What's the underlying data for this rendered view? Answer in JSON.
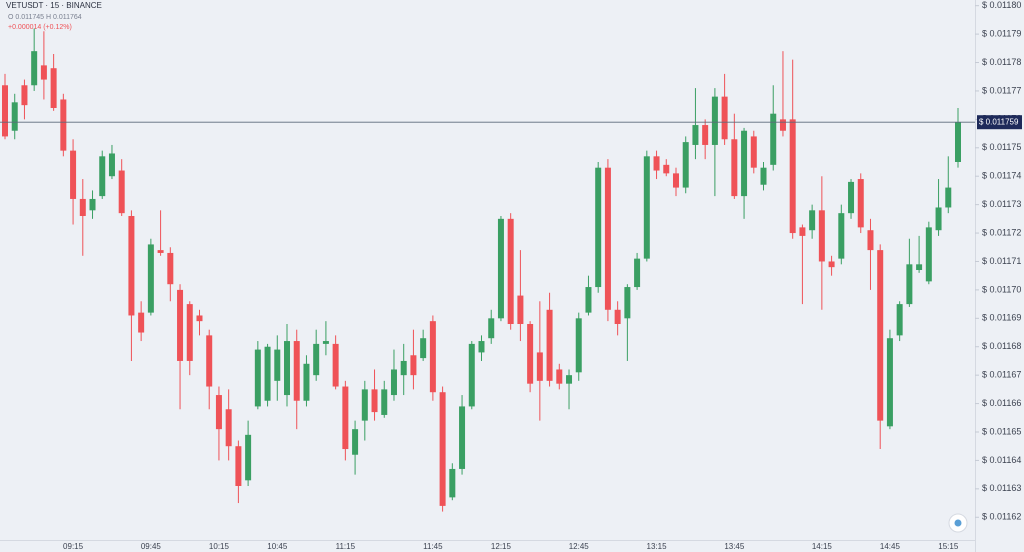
{
  "chart_data": {
    "type": "candlestick",
    "title": "VETUSDT · 15 · BINANCE",
    "subtitle": "O 0.011745 H 0.011764",
    "change": "+0.000014 (+0.12%)",
    "up_color": "#3a9f63",
    "down_color": "#ef5257",
    "price_line": {
      "value": 0.011759,
      "label": "$ 0.011759"
    },
    "ylim": [
      0.011612,
      0.011802
    ],
    "yticks": [
      {
        "value": 0.0118,
        "label": "$ 0.01180"
      },
      {
        "value": 0.01179,
        "label": "$ 0.01179"
      },
      {
        "value": 0.01178,
        "label": "$ 0.01178"
      },
      {
        "value": 0.01177,
        "label": "$ 0.01177"
      },
      {
        "value": 0.01176,
        "label": "$ 0.01176"
      },
      {
        "value": 0.01175,
        "label": "$ 0.01175"
      },
      {
        "value": 0.01174,
        "label": "$ 0.01174"
      },
      {
        "value": 0.01173,
        "label": "$ 0.01173"
      },
      {
        "value": 0.01172,
        "label": "$ 0.01172"
      },
      {
        "value": 0.01171,
        "label": "$ 0.01171"
      },
      {
        "value": 0.0117,
        "label": "$ 0.01170"
      },
      {
        "value": 0.01169,
        "label": "$ 0.01169"
      },
      {
        "value": 0.01168,
        "label": "$ 0.01168"
      },
      {
        "value": 0.01167,
        "label": "$ 0.01167"
      },
      {
        "value": 0.01166,
        "label": "$ 0.01166"
      },
      {
        "value": 0.01165,
        "label": "$ 0.01165"
      },
      {
        "value": 0.01164,
        "label": "$ 0.01164"
      },
      {
        "value": 0.01163,
        "label": "$ 0.01163"
      },
      {
        "value": 0.01162,
        "label": "$ 0.01162"
      }
    ],
    "categories": [
      null,
      null,
      null,
      null,
      null,
      null,
      null,
      "09:15",
      null,
      null,
      null,
      null,
      null,
      null,
      null,
      "09:45",
      null,
      null,
      null,
      null,
      null,
      null,
      "10:15",
      null,
      null,
      null,
      null,
      null,
      "10:45",
      null,
      null,
      null,
      null,
      null,
      null,
      "11:15",
      null,
      null,
      null,
      null,
      null,
      null,
      null,
      null,
      "11:45",
      null,
      null,
      null,
      null,
      null,
      null,
      "12:15",
      null,
      null,
      null,
      null,
      null,
      null,
      null,
      "12:45",
      null,
      null,
      null,
      null,
      null,
      null,
      null,
      "13:15",
      null,
      null,
      null,
      null,
      null,
      null,
      null,
      "13:45",
      null,
      null,
      null,
      null,
      null,
      null,
      null,
      null,
      "14:15",
      null,
      null,
      null,
      null,
      null,
      null,
      "14:45",
      null,
      null,
      null,
      null,
      null,
      "15:15",
      null
    ],
    "open": [
      0.011772,
      0.011756,
      0.011772,
      0.011772,
      0.011779,
      0.011778,
      0.011767,
      0.011749,
      0.011732,
      0.011728,
      0.011733,
      0.01174,
      0.011742,
      0.011726,
      0.011692,
      0.011692,
      0.011714,
      0.011713,
      0.0117,
      0.011695,
      0.011691,
      0.011684,
      0.011663,
      0.011658,
      0.011645,
      0.011633,
      0.011659,
      0.011661,
      0.011668,
      0.011663,
      0.011682,
      0.011661,
      0.01167,
      0.011681,
      0.011681,
      0.011666,
      0.011642,
      0.011654,
      0.011665,
      0.011656,
      0.011663,
      0.01167,
      0.011677,
      0.011676,
      0.011689,
      0.011664,
      0.011627,
      0.011637,
      0.011659,
      0.011678,
      0.011683,
      0.01169,
      0.011725,
      0.011698,
      0.011688,
      0.011678,
      0.011693,
      0.011672,
      0.011667,
      0.011671,
      0.011692,
      0.011701,
      0.011743,
      0.011693,
      0.01169,
      0.011701,
      0.011711,
      0.011747,
      0.011744,
      0.011741,
      0.011736,
      0.011751,
      0.011758,
      0.011751,
      0.011768,
      0.011753,
      0.011733,
      0.011754,
      0.011737,
      0.011744,
      0.01176,
      0.01176,
      0.011722,
      0.011721,
      0.011728,
      0.01171,
      0.011711,
      0.011727,
      0.011739,
      0.011721,
      0.011714,
      0.011652,
      0.011684,
      0.011695,
      0.011707,
      0.011703,
      0.011721,
      0.011729,
      0.011745
    ],
    "high": [
      0.011776,
      0.011769,
      0.011774,
      0.011792,
      0.011791,
      0.011783,
      0.011769,
      0.011753,
      0.011739,
      0.011735,
      0.011749,
      0.011751,
      0.011746,
      0.011728,
      0.011696,
      0.011718,
      0.011728,
      0.011715,
      0.011702,
      0.011696,
      0.011693,
      0.011686,
      0.011666,
      0.011665,
      0.011647,
      0.011654,
      0.011682,
      0.011681,
      0.011684,
      0.011688,
      0.011686,
      0.011677,
      0.011686,
      0.011689,
      0.011684,
      0.011668,
      0.011654,
      0.011668,
      0.011672,
      0.011668,
      0.011679,
      0.011681,
      0.011686,
      0.011686,
      0.011691,
      0.011666,
      0.011639,
      0.011663,
      0.011682,
      0.011684,
      0.011693,
      0.011726,
      0.011727,
      0.011714,
      0.011689,
      0.011696,
      0.011699,
      0.011674,
      0.011672,
      0.011692,
      0.011705,
      0.011745,
      0.011746,
      0.011696,
      0.011702,
      0.011713,
      0.011749,
      0.011749,
      0.011746,
      0.011743,
      0.011754,
      0.011771,
      0.01176,
      0.011771,
      0.011776,
      0.011762,
      0.011757,
      0.011756,
      0.011745,
      0.011772,
      0.011784,
      0.011781,
      0.011723,
      0.01173,
      0.01174,
      0.011712,
      0.01173,
      0.011739,
      0.011741,
      0.011725,
      0.011716,
      0.011686,
      0.011696,
      0.011718,
      0.011719,
      0.011724,
      0.011739,
      0.011747,
      0.011764
    ],
    "low": [
      0.011753,
      0.011753,
      0.01176,
      0.01177,
      0.011767,
      0.011763,
      0.011747,
      0.011723,
      0.011712,
      0.011725,
      0.011732,
      0.011739,
      0.011726,
      0.011675,
      0.011682,
      0.011691,
      0.011712,
      0.011696,
      0.011658,
      0.01167,
      0.011684,
      0.011658,
      0.01164,
      0.01164,
      0.011625,
      0.011631,
      0.011658,
      0.011659,
      0.011661,
      0.011659,
      0.011651,
      0.011659,
      0.011668,
      0.011677,
      0.011665,
      0.01164,
      0.011635,
      0.011647,
      0.011654,
      0.011655,
      0.011661,
      0.011663,
      0.011665,
      0.011675,
      0.011661,
      0.011622,
      0.011626,
      0.011635,
      0.011658,
      0.011675,
      0.011681,
      0.011689,
      0.011686,
      0.011682,
      0.011664,
      0.011654,
      0.011666,
      0.011665,
      0.011658,
      0.011668,
      0.011691,
      0.011699,
      0.011689,
      0.011684,
      0.011675,
      0.0117,
      0.01171,
      0.011739,
      0.01174,
      0.011733,
      0.011734,
      0.011746,
      0.011746,
      0.011733,
      0.011751,
      0.011732,
      0.011725,
      0.011741,
      0.011735,
      0.011742,
      0.011754,
      0.011718,
      0.011695,
      0.011718,
      0.011693,
      0.011705,
      0.011709,
      0.011725,
      0.01172,
      0.0117,
      0.011644,
      0.011651,
      0.011682,
      0.011694,
      0.011706,
      0.011702,
      0.011719,
      0.011727,
      0.011743
    ],
    "close": [
      0.011754,
      0.011766,
      0.011765,
      0.011784,
      0.011774,
      0.011764,
      0.011749,
      0.011732,
      0.011726,
      0.011732,
      0.011747,
      0.011748,
      0.011727,
      0.011691,
      0.011685,
      0.011716,
      0.011713,
      0.011702,
      0.011675,
      0.011675,
      0.011689,
      0.011666,
      0.011651,
      0.011645,
      0.011631,
      0.011649,
      0.011679,
      0.01168,
      0.011679,
      0.011682,
      0.011661,
      0.011674,
      0.011681,
      0.011682,
      0.011666,
      0.011644,
      0.011651,
      0.011665,
      0.011657,
      0.011665,
      0.011672,
      0.011675,
      0.01167,
      0.011683,
      0.011664,
      0.011624,
      0.011637,
      0.011659,
      0.011681,
      0.011682,
      0.01169,
      0.011725,
      0.011688,
      0.011688,
      0.011667,
      0.011668,
      0.011668,
      0.011667,
      0.01167,
      0.01169,
      0.011701,
      0.011743,
      0.011693,
      0.011688,
      0.011701,
      0.011711,
      0.011747,
      0.011742,
      0.011741,
      0.011736,
      0.011752,
      0.011758,
      0.011751,
      0.011768,
      0.011753,
      0.011733,
      0.011756,
      0.011743,
      0.011743,
      0.011762,
      0.011756,
      0.01172,
      0.011719,
      0.011728,
      0.01171,
      0.011708,
      0.011727,
      0.011738,
      0.011722,
      0.011714,
      0.011654,
      0.011683,
      0.011695,
      0.011709,
      0.011709,
      0.011722,
      0.011729,
      0.011736,
      0.011759
    ]
  }
}
